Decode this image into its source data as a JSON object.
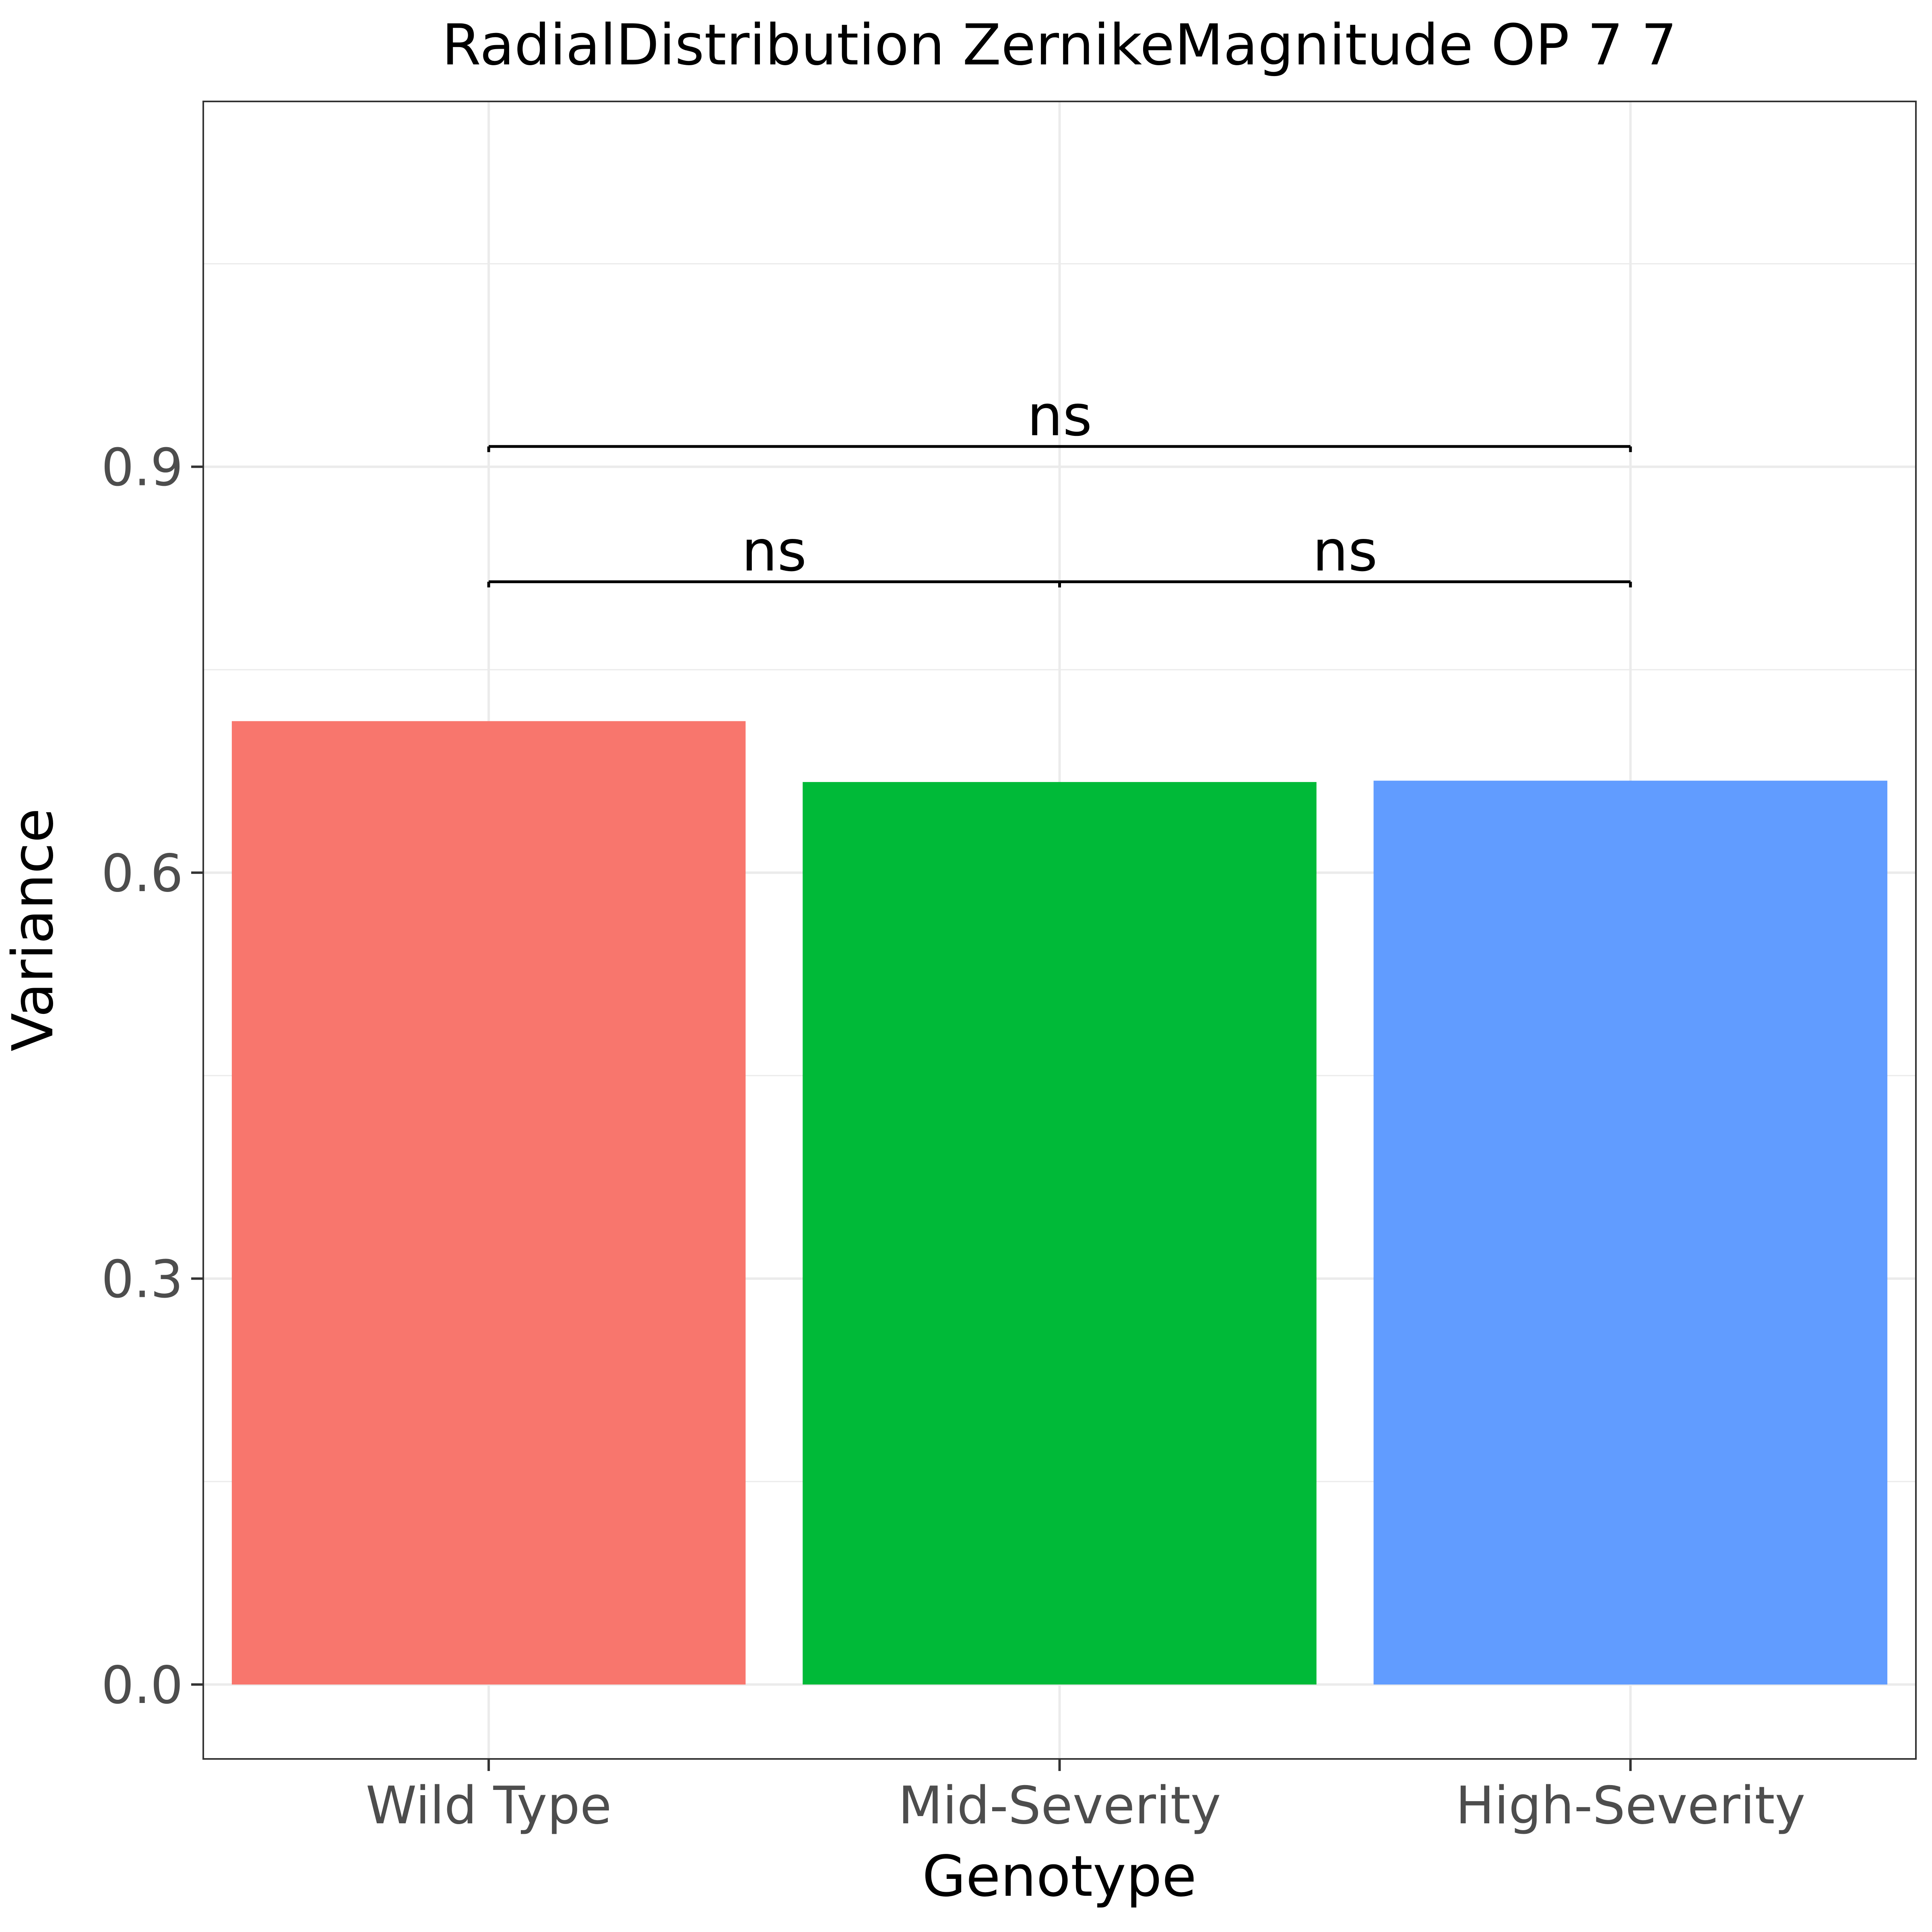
{
  "chart_data": {
    "type": "bar",
    "title": "RadialDistribution ZernikeMagnitude OP 7 7",
    "xlabel": "Genotype",
    "ylabel": "Variance",
    "categories": [
      "Wild Type",
      "Mid-Severity",
      "High-Severity"
    ],
    "values": [
      0.712,
      0.667,
      0.668
    ],
    "colors": [
      "#F8766D",
      "#00BA38",
      "#619CFF"
    ],
    "ylim": [
      -0.055,
      1.17
    ],
    "yticks": [
      0.0,
      0.3,
      0.6,
      0.9
    ],
    "ytick_labels": [
      "0.0",
      "0.3",
      "0.6",
      "0.9"
    ],
    "grid": true,
    "legend": "none",
    "annotations": [
      {
        "from": 0,
        "to": 1,
        "y": 0.815,
        "label": "ns"
      },
      {
        "from": 1,
        "to": 2,
        "y": 0.815,
        "label": "ns"
      },
      {
        "from": 0,
        "to": 2,
        "y": 0.915,
        "label": "ns"
      }
    ]
  }
}
